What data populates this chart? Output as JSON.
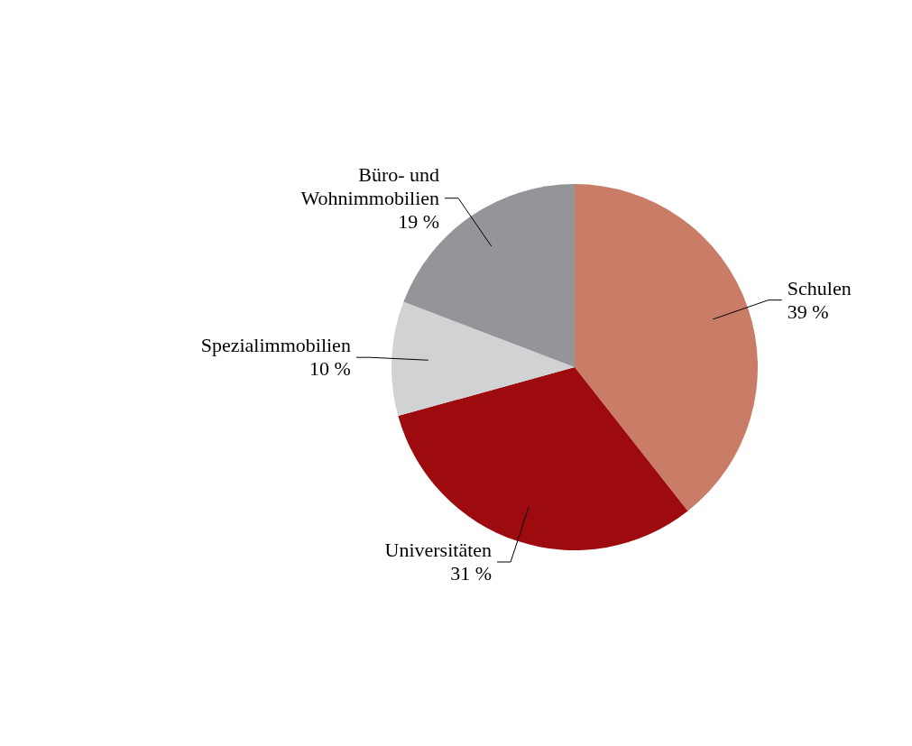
{
  "chart_data": {
    "type": "pie",
    "categories": [
      "Schulen",
      "Universitäten",
      "Spezialimmobilien",
      "Büro- und Wohnimmobilien"
    ],
    "values": [
      39,
      31,
      10,
      19
    ],
    "value_labels": [
      "39 %",
      "31 %",
      "10 %",
      "19 %"
    ],
    "colors": [
      "#c97c66",
      "#9e0b0f",
      "#d1d2d4",
      "#939598"
    ]
  }
}
